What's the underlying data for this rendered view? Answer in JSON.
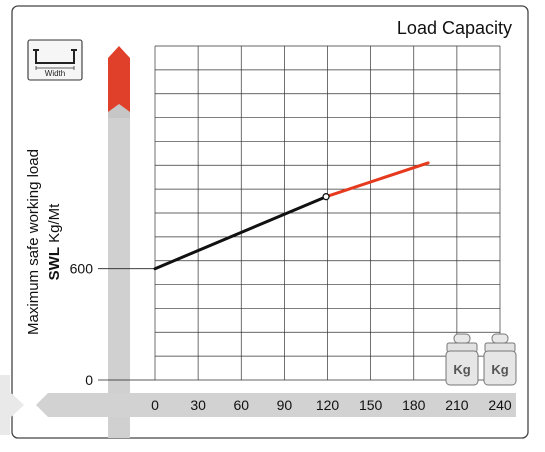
{
  "chart_data": {
    "type": "line",
    "title": "Load Capacity",
    "ylabel": "Maximum safe working load",
    "ylabel_unit_bold": "SWL",
    "ylabel_unit": "Kg/Mt",
    "width_icon_label": "Width",
    "weight_label": "Kg",
    "x_ticks": [
      "0",
      "30",
      "60",
      "90",
      "120",
      "150",
      "180",
      "210",
      "240"
    ],
    "y_ticks": [
      {
        "label": "0",
        "value": 0
      },
      {
        "label": "600",
        "value": 600
      }
    ],
    "xlim": [
      0,
      240
    ],
    "ylim": [
      0,
      1800
    ],
    "grid": true,
    "series": [
      {
        "color": "#111111",
        "points": [
          [
            0,
            600
          ],
          [
            119,
            988
          ]
        ]
      },
      {
        "color": "#e63a1e",
        "points": [
          [
            119,
            988
          ],
          [
            190,
            1170
          ]
        ]
      }
    ],
    "marker": {
      "x": 119,
      "y": 988
    }
  },
  "colors": {
    "grid": "#333333",
    "axis_bar": "#cfcfcf",
    "arrow_red": "#e0402a",
    "frame": "#444444"
  }
}
